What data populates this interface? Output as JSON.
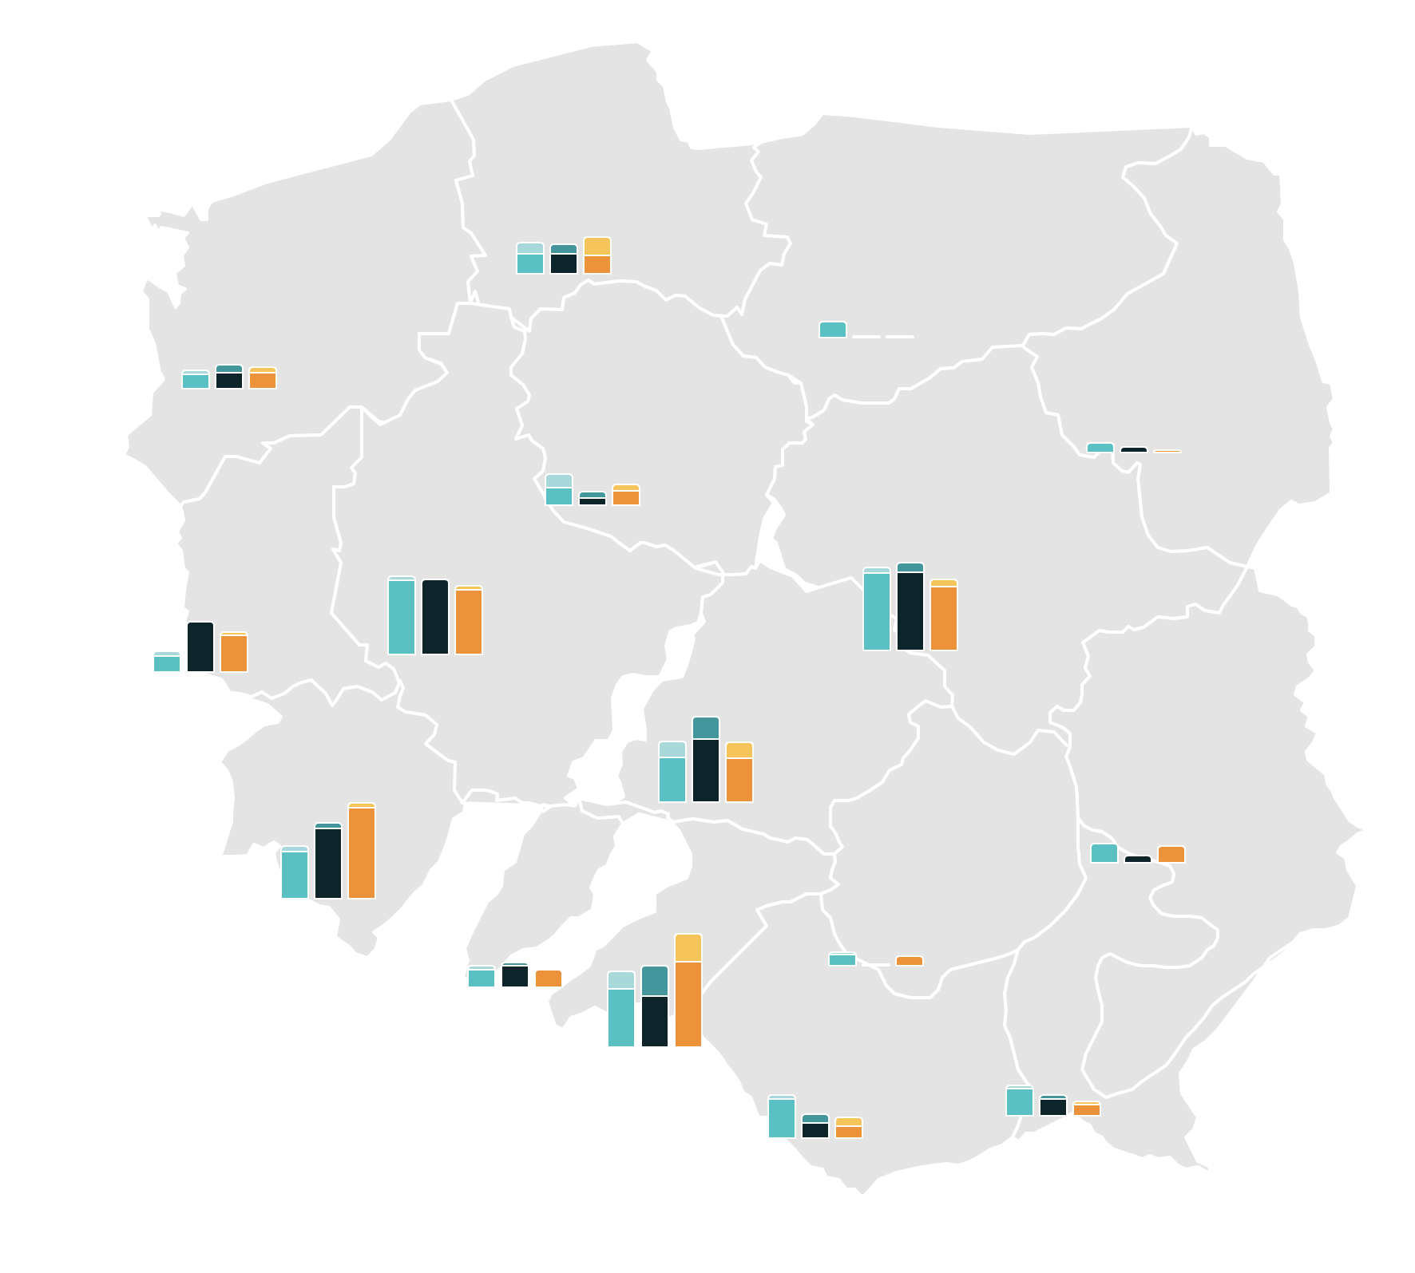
{
  "colors": {
    "background": "#ffffff",
    "land": "#e4e4e4",
    "border": "#ffffff",
    "series": [
      {
        "base": "#5bc0c2",
        "cap": "#a8d8d9"
      },
      {
        "base": "#0d242b",
        "cap": "#43969b"
      },
      {
        "base": "#ec923b",
        "cap": "#f5c55b"
      }
    ]
  },
  "map": {
    "country": "Poland",
    "regions": [
      {
        "id": "zachodniopomorskie",
        "bars": [
          [
            18,
            5
          ],
          [
            20,
            10
          ],
          [
            20,
            7
          ]
        ]
      },
      {
        "id": "pomorskie",
        "bars": [
          [
            25,
            14
          ],
          [
            25,
            12
          ],
          [
            23,
            23
          ]
        ]
      },
      {
        "id": "warminsko-mazurskie",
        "bars": [
          [
            20,
            0
          ],
          [
            2,
            0
          ],
          [
            2,
            0
          ]
        ]
      },
      {
        "id": "podlaskie",
        "bars": [
          [
            12,
            0
          ],
          [
            7,
            0
          ],
          [
            3,
            0
          ]
        ]
      },
      {
        "id": "kujawsko-pomorskie",
        "bars": [
          [
            22,
            17
          ],
          [
            9,
            8
          ],
          [
            18,
            8
          ]
        ]
      },
      {
        "id": "lubuskie",
        "bars": [
          [
            20,
            6
          ],
          [
            63,
            0
          ],
          [
            46,
            4
          ]
        ]
      },
      {
        "id": "wielkopolskie",
        "bars": [
          [
            93,
            5
          ],
          [
            94,
            0
          ],
          [
            81,
            5
          ]
        ]
      },
      {
        "id": "mazowieckie",
        "bars": [
          [
            97,
            7
          ],
          [
            98,
            12
          ],
          [
            80,
            9
          ]
        ]
      },
      {
        "id": "lodzkie",
        "bars": [
          [
            56,
            20
          ],
          [
            79,
            28
          ],
          [
            55,
            20
          ]
        ]
      },
      {
        "id": "dolnoslaskie",
        "bars": [
          [
            59,
            7
          ],
          [
            88,
            7
          ],
          [
            114,
            6
          ]
        ]
      },
      {
        "id": "lubelskie",
        "bars": [
          [
            24,
            0
          ],
          [
            9,
            0
          ],
          [
            21,
            0
          ]
        ]
      },
      {
        "id": "opolskie",
        "bars": [
          [
            22,
            5
          ],
          [
            27,
            4
          ],
          [
            22,
            0
          ]
        ]
      },
      {
        "id": "slaskie",
        "bars": [
          [
            73,
            22
          ],
          [
            64,
            38
          ],
          [
            107,
            35
          ]
        ]
      },
      {
        "id": "swietokrzyskie",
        "bars": [
          [
            14,
            3
          ],
          [
            2,
            0
          ],
          [
            12,
            0
          ]
        ]
      },
      {
        "id": "malopolskie",
        "bars": [
          [
            49,
            5
          ],
          [
            19,
            11
          ],
          [
            15,
            11
          ]
        ]
      },
      {
        "id": "podkarpackie",
        "bars": [
          [
            34,
            4
          ],
          [
            21,
            5
          ],
          [
            14,
            4
          ]
        ]
      }
    ]
  }
}
